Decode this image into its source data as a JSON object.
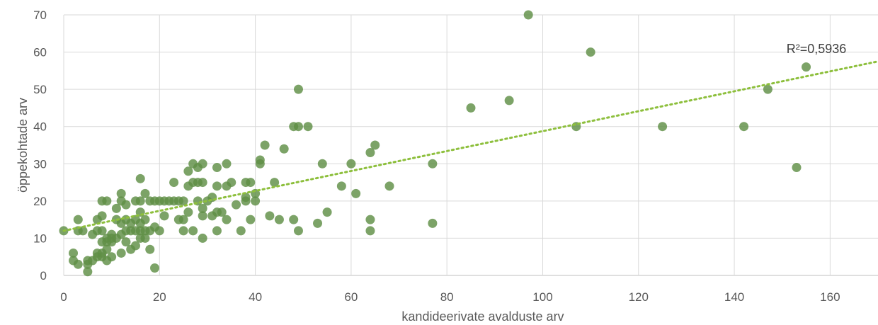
{
  "chart_data": {
    "type": "scatter",
    "title": "",
    "xlabel": "kandideerivate avalduste arv",
    "ylabel": "öppekohtade arv",
    "xlim": [
      0,
      170
    ],
    "ylim": [
      0,
      70
    ],
    "x_ticks": [
      0,
      20,
      40,
      60,
      80,
      100,
      120,
      140,
      160
    ],
    "y_ticks": [
      0,
      10,
      20,
      30,
      40,
      50,
      60,
      70
    ],
    "grid": "vertical and horizontal",
    "legend": "none",
    "marker_color": "#5f8f45",
    "trendline": {
      "type": "linear",
      "style": "dotted",
      "color": "#8dbf3c",
      "start": [
        0,
        12
      ],
      "end": [
        170,
        57.5
      ],
      "annotation": "R²=0,5936"
    },
    "points": [
      [
        0,
        12
      ],
      [
        2,
        6
      ],
      [
        2,
        4
      ],
      [
        3,
        3
      ],
      [
        3,
        12
      ],
      [
        3,
        15
      ],
      [
        4,
        12
      ],
      [
        5,
        1
      ],
      [
        5,
        3
      ],
      [
        5,
        4
      ],
      [
        6,
        11
      ],
      [
        6,
        4
      ],
      [
        7,
        5
      ],
      [
        7,
        6
      ],
      [
        7,
        12
      ],
      [
        7,
        15
      ],
      [
        8,
        20
      ],
      [
        8,
        16
      ],
      [
        8,
        12
      ],
      [
        8,
        9
      ],
      [
        8,
        6
      ],
      [
        8,
        5
      ],
      [
        9,
        20
      ],
      [
        9,
        10
      ],
      [
        9,
        9
      ],
      [
        9,
        7
      ],
      [
        9,
        4
      ],
      [
        10,
        11
      ],
      [
        10,
        10
      ],
      [
        10,
        9
      ],
      [
        10,
        5
      ],
      [
        11,
        18
      ],
      [
        11,
        15
      ],
      [
        11,
        10
      ],
      [
        12,
        22
      ],
      [
        12,
        20
      ],
      [
        12,
        14
      ],
      [
        12,
        11
      ],
      [
        12,
        6
      ],
      [
        13,
        19
      ],
      [
        13,
        15
      ],
      [
        13,
        12
      ],
      [
        13,
        9
      ],
      [
        14,
        14
      ],
      [
        14,
        12
      ],
      [
        14,
        7
      ],
      [
        15,
        20
      ],
      [
        15,
        15
      ],
      [
        15,
        12
      ],
      [
        15,
        8
      ],
      [
        16,
        26
      ],
      [
        16,
        20
      ],
      [
        16,
        17
      ],
      [
        16,
        14
      ],
      [
        16,
        12
      ],
      [
        16,
        10
      ],
      [
        17,
        22
      ],
      [
        17,
        15
      ],
      [
        17,
        12
      ],
      [
        17,
        10
      ],
      [
        18,
        20
      ],
      [
        18,
        12
      ],
      [
        18,
        7
      ],
      [
        19,
        20
      ],
      [
        19,
        13
      ],
      [
        19,
        2
      ],
      [
        20,
        20
      ],
      [
        20,
        12
      ],
      [
        21,
        20
      ],
      [
        21,
        16
      ],
      [
        22,
        20
      ],
      [
        23,
        25
      ],
      [
        23,
        20
      ],
      [
        24,
        20
      ],
      [
        24,
        15
      ],
      [
        25,
        20
      ],
      [
        25,
        15
      ],
      [
        25,
        12
      ],
      [
        26,
        28
      ],
      [
        26,
        24
      ],
      [
        26,
        17
      ],
      [
        27,
        30
      ],
      [
        27,
        25
      ],
      [
        27,
        12
      ],
      [
        28,
        29
      ],
      [
        28,
        25
      ],
      [
        28,
        20
      ],
      [
        29,
        30
      ],
      [
        29,
        25
      ],
      [
        29,
        18
      ],
      [
        29,
        16
      ],
      [
        29,
        10
      ],
      [
        30,
        20
      ],
      [
        31,
        21
      ],
      [
        31,
        16
      ],
      [
        32,
        29
      ],
      [
        32,
        24
      ],
      [
        32,
        17
      ],
      [
        32,
        12
      ],
      [
        33,
        17
      ],
      [
        34,
        30
      ],
      [
        34,
        24
      ],
      [
        34,
        15
      ],
      [
        35,
        25
      ],
      [
        36,
        19
      ],
      [
        37,
        12
      ],
      [
        38,
        25
      ],
      [
        38,
        21
      ],
      [
        38,
        20
      ],
      [
        39,
        25
      ],
      [
        39,
        15
      ],
      [
        40,
        22
      ],
      [
        40,
        20
      ],
      [
        41,
        30
      ],
      [
        41,
        31
      ],
      [
        42,
        35
      ],
      [
        43,
        16
      ],
      [
        44,
        25
      ],
      [
        45,
        15
      ],
      [
        46,
        34
      ],
      [
        48,
        40
      ],
      [
        48,
        15
      ],
      [
        49,
        50
      ],
      [
        49,
        40
      ],
      [
        49,
        12
      ],
      [
        51,
        40
      ],
      [
        53,
        14
      ],
      [
        54,
        30
      ],
      [
        55,
        17
      ],
      [
        58,
        24
      ],
      [
        60,
        30
      ],
      [
        61,
        22
      ],
      [
        64,
        33
      ],
      [
        64,
        15
      ],
      [
        64,
        12
      ],
      [
        65,
        35
      ],
      [
        68,
        24
      ],
      [
        77,
        30
      ],
      [
        77,
        14
      ],
      [
        85,
        45
      ],
      [
        93,
        47
      ],
      [
        97,
        70
      ],
      [
        107,
        40
      ],
      [
        110,
        60
      ],
      [
        125,
        40
      ],
      [
        142,
        40
      ],
      [
        147,
        50
      ],
      [
        153,
        29
      ],
      [
        155,
        56
      ]
    ]
  }
}
